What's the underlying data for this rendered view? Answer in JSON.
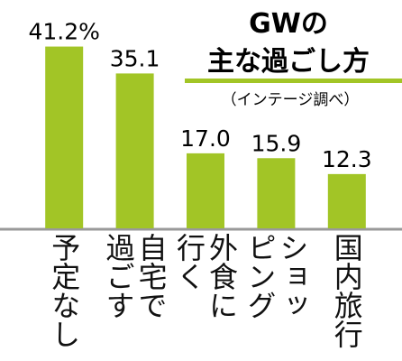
{
  "chart_data": {
    "type": "bar",
    "title": [
      "GWの",
      "主な過ごし方"
    ],
    "subtitle": "（インテージ調べ）",
    "categories": [
      "予定なし",
      "自宅で\n過ごす",
      "外食に\n行く",
      "ショッ\nピング",
      "国内旅行"
    ],
    "values": [
      41.2,
      35.1,
      17.0,
      15.9,
      12.3
    ],
    "value_labels": [
      "41.2%",
      "35.1",
      "17.0",
      "15.9",
      "12.3"
    ],
    "color": "#a2c526",
    "ylim": [
      0,
      45
    ]
  }
}
